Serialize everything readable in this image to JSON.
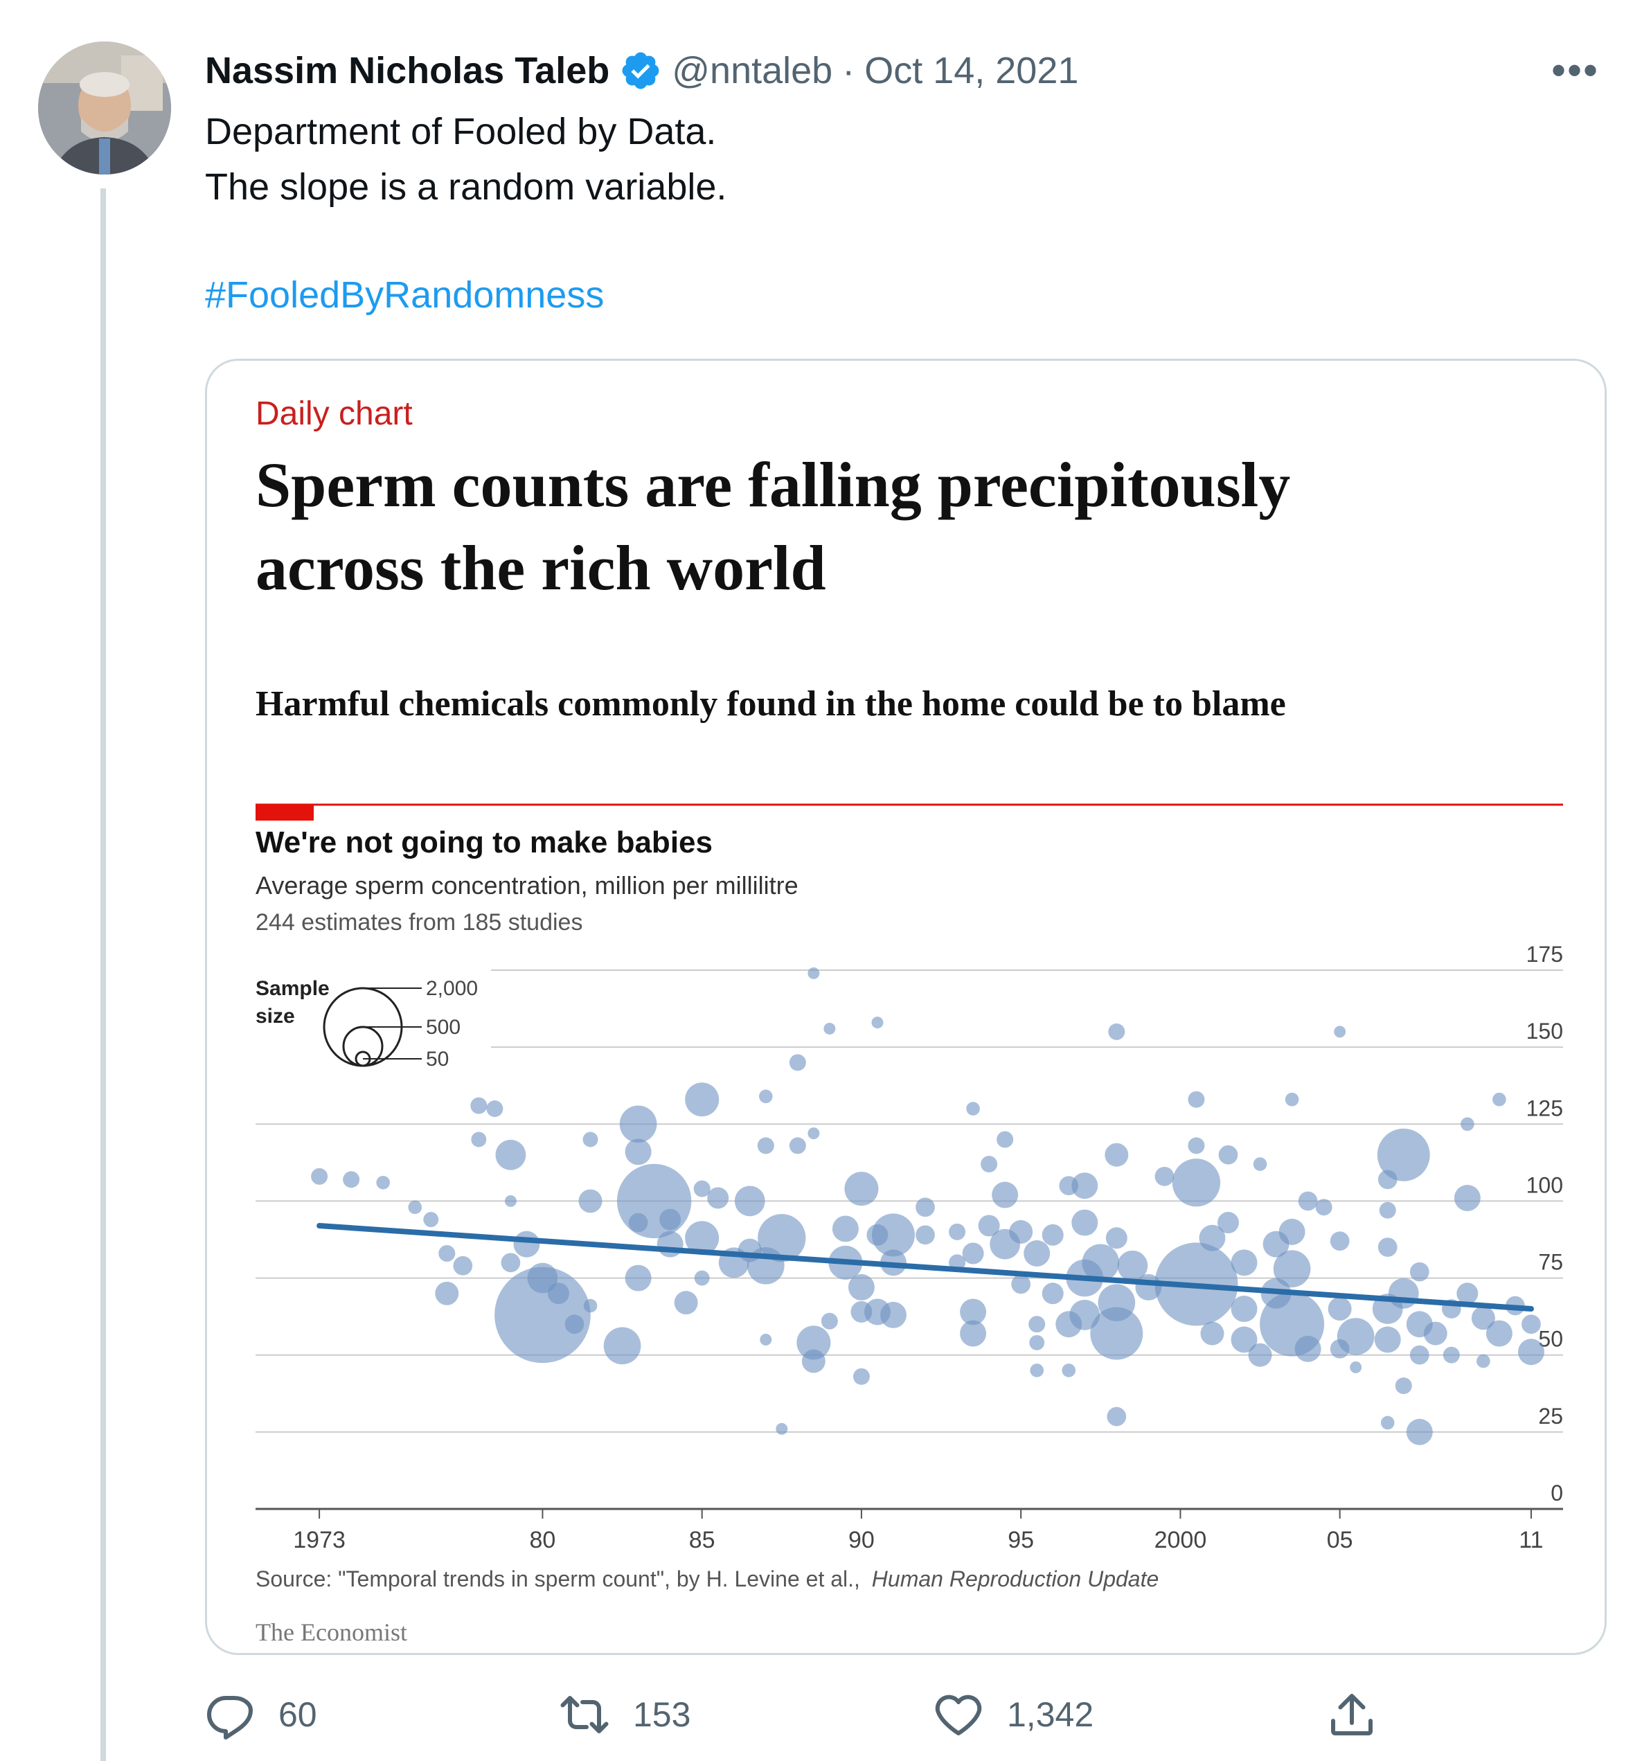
{
  "tweet": {
    "display_name": "Nassim Nicholas Taleb",
    "handle": "@nntaleb",
    "separator": "·",
    "date": "Oct 14, 2021",
    "more": "•••",
    "text_lines": [
      "Department of Fooled by Data.",
      "The slope is a random variable."
    ],
    "hashtag": "#FooledByRandomness"
  },
  "card": {
    "kicker": "Daily chart",
    "headline_line1": "Sperm counts are falling precipitously",
    "headline_line2": "across the rich world",
    "standfirst": "Harmful chemicals commonly found in the home could be to blame",
    "chart_title": "We're not going to make babies",
    "chart_subtitle": "Average sperm concentration, million per millilitre",
    "chart_note": "244 estimates from 185 studies",
    "legend_title_1": "Sample",
    "legend_title_2": "size",
    "legend_values": [
      "2,000",
      "500",
      "50"
    ],
    "source_prefix": "Source: \"Temporal trends in sperm count\", by H. Levine et al.,",
    "source_journal": "Human Reproduction Update",
    "brand": "The Economist",
    "accent_color": "#e3120b"
  },
  "chart_data": {
    "type": "scatter",
    "ylim": [
      0,
      175
    ],
    "xlim": [
      1971,
      2012
    ],
    "y_ticks": [
      "0",
      "25",
      "50",
      "75",
      "100",
      "125",
      "150",
      "175"
    ],
    "x_ticks": [
      {
        "year": 1973,
        "label": "1973"
      },
      {
        "year": 1980,
        "label": "80"
      },
      {
        "year": 1985,
        "label": "85"
      },
      {
        "year": 1990,
        "label": "90"
      },
      {
        "year": 1995,
        "label": "95"
      },
      {
        "year": 2000,
        "label": "2000"
      },
      {
        "year": 2005,
        "label": "05"
      },
      {
        "year": 2011,
        "label": "11"
      }
    ],
    "trend": {
      "x": [
        1973,
        2011
      ],
      "y": [
        92,
        65
      ]
    },
    "point_color": "#6f92c2",
    "trend_color": "#2a6ca8",
    "points": [
      {
        "x": 1973.0,
        "y": 108,
        "n": 60
      },
      {
        "x": 1974.0,
        "y": 107,
        "n": 60
      },
      {
        "x": 1975.0,
        "y": 106,
        "n": 40
      },
      {
        "x": 1976.0,
        "y": 98,
        "n": 40
      },
      {
        "x": 1976.5,
        "y": 94,
        "n": 50
      },
      {
        "x": 1977.0,
        "y": 83,
        "n": 60
      },
      {
        "x": 1977.0,
        "y": 70,
        "n": 120
      },
      {
        "x": 1977.5,
        "y": 79,
        "n": 80
      },
      {
        "x": 1978.0,
        "y": 131,
        "n": 60
      },
      {
        "x": 1978.5,
        "y": 130,
        "n": 60
      },
      {
        "x": 1978.0,
        "y": 120,
        "n": 50
      },
      {
        "x": 1979.0,
        "y": 115,
        "n": 200
      },
      {
        "x": 1979.0,
        "y": 100,
        "n": 30
      },
      {
        "x": 1979.5,
        "y": 86,
        "n": 150
      },
      {
        "x": 1980.0,
        "y": 75,
        "n": 200
      },
      {
        "x": 1980.0,
        "y": 63,
        "n": 2000
      },
      {
        "x": 1979.0,
        "y": 80,
        "n": 80
      },
      {
        "x": 1980.5,
        "y": 70,
        "n": 100
      },
      {
        "x": 1981.0,
        "y": 60,
        "n": 80
      },
      {
        "x": 1981.5,
        "y": 66,
        "n": 40
      },
      {
        "x": 1981.5,
        "y": 100,
        "n": 120
      },
      {
        "x": 1981.5,
        "y": 120,
        "n": 50
      },
      {
        "x": 1982.5,
        "y": 53,
        "n": 300
      },
      {
        "x": 1983.0,
        "y": 93,
        "n": 80
      },
      {
        "x": 1983.0,
        "y": 75,
        "n": 150
      },
      {
        "x": 1983.0,
        "y": 125,
        "n": 300
      },
      {
        "x": 1983.0,
        "y": 116,
        "n": 150
      },
      {
        "x": 1983.5,
        "y": 100,
        "n": 1200
      },
      {
        "x": 1984.0,
        "y": 86,
        "n": 150
      },
      {
        "x": 1984.5,
        "y": 67,
        "n": 120
      },
      {
        "x": 1984.0,
        "y": 94,
        "n": 100
      },
      {
        "x": 1985.0,
        "y": 133,
        "n": 250
      },
      {
        "x": 1985.0,
        "y": 104,
        "n": 60
      },
      {
        "x": 1985.0,
        "y": 88,
        "n": 250
      },
      {
        "x": 1985.0,
        "y": 75,
        "n": 50
      },
      {
        "x": 1985.5,
        "y": 101,
        "n": 100
      },
      {
        "x": 1986.0,
        "y": 80,
        "n": 200
      },
      {
        "x": 1986.5,
        "y": 100,
        "n": 200
      },
      {
        "x": 1986.5,
        "y": 84,
        "n": 120
      },
      {
        "x": 1987.0,
        "y": 134,
        "n": 40
      },
      {
        "x": 1987.0,
        "y": 118,
        "n": 60
      },
      {
        "x": 1987.5,
        "y": 88,
        "n": 500
      },
      {
        "x": 1987.0,
        "y": 79,
        "n": 300
      },
      {
        "x": 1987.0,
        "y": 55,
        "n": 30
      },
      {
        "x": 1987.5,
        "y": 26,
        "n": 30
      },
      {
        "x": 1988.0,
        "y": 118,
        "n": 60
      },
      {
        "x": 1988.0,
        "y": 145,
        "n": 60
      },
      {
        "x": 1988.5,
        "y": 122,
        "n": 30
      },
      {
        "x": 1988.5,
        "y": 174,
        "n": 30
      },
      {
        "x": 1988.5,
        "y": 54,
        "n": 250
      },
      {
        "x": 1988.5,
        "y": 48,
        "n": 120
      },
      {
        "x": 1989.0,
        "y": 61,
        "n": 60
      },
      {
        "x": 1989.0,
        "y": 156,
        "n": 30
      },
      {
        "x": 1989.5,
        "y": 91,
        "n": 150
      },
      {
        "x": 1989.5,
        "y": 80,
        "n": 250
      },
      {
        "x": 1990.0,
        "y": 104,
        "n": 250
      },
      {
        "x": 1990.0,
        "y": 72,
        "n": 150
      },
      {
        "x": 1990.0,
        "y": 43,
        "n": 60
      },
      {
        "x": 1990.0,
        "y": 64,
        "n": 100
      },
      {
        "x": 1990.5,
        "y": 158,
        "n": 30
      },
      {
        "x": 1990.5,
        "y": 89,
        "n": 100
      },
      {
        "x": 1990.5,
        "y": 64,
        "n": 150
      },
      {
        "x": 1991.0,
        "y": 89,
        "n": 400
      },
      {
        "x": 1991.0,
        "y": 80,
        "n": 150
      },
      {
        "x": 1991.0,
        "y": 63,
        "n": 150
      },
      {
        "x": 1992.0,
        "y": 98,
        "n": 80
      },
      {
        "x": 1992.0,
        "y": 89,
        "n": 80
      },
      {
        "x": 1993.0,
        "y": 90,
        "n": 60
      },
      {
        "x": 1993.0,
        "y": 80,
        "n": 60
      },
      {
        "x": 1993.5,
        "y": 130,
        "n": 40
      },
      {
        "x": 1993.5,
        "y": 83,
        "n": 100
      },
      {
        "x": 1993.5,
        "y": 64,
        "n": 150
      },
      {
        "x": 1993.5,
        "y": 57,
        "n": 150
      },
      {
        "x": 1994.0,
        "y": 92,
        "n": 100
      },
      {
        "x": 1994.0,
        "y": 112,
        "n": 60
      },
      {
        "x": 1994.5,
        "y": 120,
        "n": 60
      },
      {
        "x": 1994.5,
        "y": 102,
        "n": 150
      },
      {
        "x": 1994.5,
        "y": 86,
        "n": 200
      },
      {
        "x": 1995.0,
        "y": 90,
        "n": 120
      },
      {
        "x": 1995.0,
        "y": 73,
        "n": 80
      },
      {
        "x": 1995.5,
        "y": 83,
        "n": 150
      },
      {
        "x": 1995.5,
        "y": 60,
        "n": 60
      },
      {
        "x": 1995.5,
        "y": 54,
        "n": 50
      },
      {
        "x": 1995.5,
        "y": 45,
        "n": 40
      },
      {
        "x": 1996.0,
        "y": 89,
        "n": 100
      },
      {
        "x": 1996.0,
        "y": 70,
        "n": 100
      },
      {
        "x": 1996.5,
        "y": 105,
        "n": 80
      },
      {
        "x": 1996.5,
        "y": 60,
        "n": 150
      },
      {
        "x": 1996.5,
        "y": 45,
        "n": 40
      },
      {
        "x": 1997.0,
        "y": 105,
        "n": 150
      },
      {
        "x": 1997.0,
        "y": 93,
        "n": 150
      },
      {
        "x": 1997.0,
        "y": 75,
        "n": 300
      },
      {
        "x": 1997.0,
        "y": 63,
        "n": 200
      },
      {
        "x": 1997.5,
        "y": 80,
        "n": 300
      },
      {
        "x": 1998.0,
        "y": 155,
        "n": 60
      },
      {
        "x": 1998.0,
        "y": 115,
        "n": 120
      },
      {
        "x": 1998.0,
        "y": 88,
        "n": 100
      },
      {
        "x": 1998.0,
        "y": 67,
        "n": 300
      },
      {
        "x": 1998.0,
        "y": 57,
        "n": 600
      },
      {
        "x": 1998.0,
        "y": 30,
        "n": 80
      },
      {
        "x": 1998.5,
        "y": 79,
        "n": 200
      },
      {
        "x": 1999.0,
        "y": 72,
        "n": 150
      },
      {
        "x": 1999.5,
        "y": 108,
        "n": 80
      },
      {
        "x": 2000.5,
        "y": 133,
        "n": 60
      },
      {
        "x": 2000.5,
        "y": 118,
        "n": 60
      },
      {
        "x": 2000.5,
        "y": 106,
        "n": 500
      },
      {
        "x": 2000.5,
        "y": 73,
        "n": 1500
      },
      {
        "x": 2001.0,
        "y": 88,
        "n": 150
      },
      {
        "x": 2001.0,
        "y": 57,
        "n": 120
      },
      {
        "x": 2001.5,
        "y": 115,
        "n": 80
      },
      {
        "x": 2001.5,
        "y": 93,
        "n": 100
      },
      {
        "x": 2002.0,
        "y": 80,
        "n": 150
      },
      {
        "x": 2002.0,
        "y": 65,
        "n": 150
      },
      {
        "x": 2002.0,
        "y": 55,
        "n": 150
      },
      {
        "x": 2002.5,
        "y": 112,
        "n": 40
      },
      {
        "x": 2002.5,
        "y": 50,
        "n": 120
      },
      {
        "x": 2003.0,
        "y": 86,
        "n": 150
      },
      {
        "x": 2003.0,
        "y": 70,
        "n": 200
      },
      {
        "x": 2003.5,
        "y": 133,
        "n": 40
      },
      {
        "x": 2003.5,
        "y": 90,
        "n": 150
      },
      {
        "x": 2003.5,
        "y": 78,
        "n": 300
      },
      {
        "x": 2003.5,
        "y": 60,
        "n": 900
      },
      {
        "x": 2004.0,
        "y": 100,
        "n": 80
      },
      {
        "x": 2004.0,
        "y": 52,
        "n": 150
      },
      {
        "x": 2004.5,
        "y": 98,
        "n": 60
      },
      {
        "x": 2005.0,
        "y": 155,
        "n": 30
      },
      {
        "x": 2005.0,
        "y": 87,
        "n": 80
      },
      {
        "x": 2005.0,
        "y": 65,
        "n": 120
      },
      {
        "x": 2005.0,
        "y": 52,
        "n": 80
      },
      {
        "x": 2005.5,
        "y": 56,
        "n": 300
      },
      {
        "x": 2005.5,
        "y": 46,
        "n": 30
      },
      {
        "x": 2006.5,
        "y": 97,
        "n": 60
      },
      {
        "x": 2006.5,
        "y": 85,
        "n": 80
      },
      {
        "x": 2006.5,
        "y": 65,
        "n": 200
      },
      {
        "x": 2006.5,
        "y": 55,
        "n": 150
      },
      {
        "x": 2006.5,
        "y": 28,
        "n": 40
      },
      {
        "x": 2006.5,
        "y": 107,
        "n": 80
      },
      {
        "x": 2007.0,
        "y": 115,
        "n": 600
      },
      {
        "x": 2007.0,
        "y": 70,
        "n": 200
      },
      {
        "x": 2007.0,
        "y": 40,
        "n": 60
      },
      {
        "x": 2007.5,
        "y": 77,
        "n": 80
      },
      {
        "x": 2007.5,
        "y": 60,
        "n": 150
      },
      {
        "x": 2007.5,
        "y": 50,
        "n": 80
      },
      {
        "x": 2007.5,
        "y": 25,
        "n": 150
      },
      {
        "x": 2008.0,
        "y": 57,
        "n": 120
      },
      {
        "x": 2008.5,
        "y": 65,
        "n": 80
      },
      {
        "x": 2008.5,
        "y": 50,
        "n": 60
      },
      {
        "x": 2009.0,
        "y": 125,
        "n": 40
      },
      {
        "x": 2009.0,
        "y": 101,
        "n": 150
      },
      {
        "x": 2009.0,
        "y": 70,
        "n": 100
      },
      {
        "x": 2009.5,
        "y": 62,
        "n": 120
      },
      {
        "x": 2009.5,
        "y": 48,
        "n": 40
      },
      {
        "x": 2010.0,
        "y": 133,
        "n": 40
      },
      {
        "x": 2010.0,
        "y": 57,
        "n": 150
      },
      {
        "x": 2010.5,
        "y": 66,
        "n": 80
      },
      {
        "x": 2011.0,
        "y": 60,
        "n": 80
      },
      {
        "x": 2011.0,
        "y": 51,
        "n": 150
      }
    ]
  },
  "actions": {
    "replies": "60",
    "retweets": "153",
    "likes": "1,342"
  }
}
